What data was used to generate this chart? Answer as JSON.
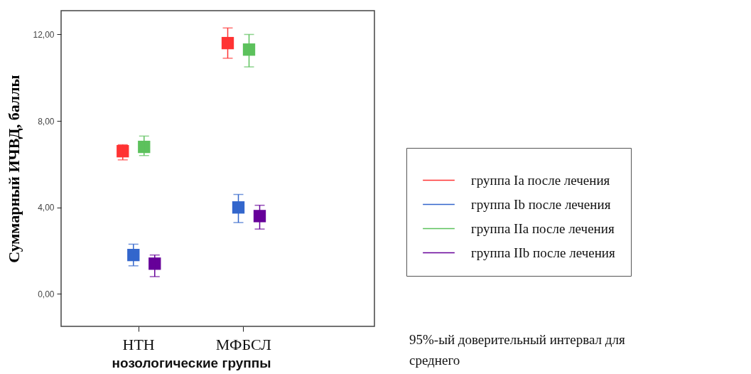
{
  "chart_data": {
    "type": "scatter",
    "xlabel": "нозологические группы",
    "ylabel": "Суммарный ИЧВД, баллы",
    "categories": [
      "НТН",
      "МФБСЛ"
    ],
    "series": [
      {
        "name": "группа Ia после лечения",
        "color": "#ff3333",
        "values": [
          6.6,
          11.6
        ],
        "errors": [
          [
            6.2,
            6.9
          ],
          [
            10.9,
            12.3
          ]
        ]
      },
      {
        "name": "группа Ib после лечения",
        "color": "#3366cc",
        "values": [
          1.8,
          4.0
        ],
        "errors": [
          [
            1.3,
            2.3
          ],
          [
            3.3,
            4.6
          ]
        ]
      },
      {
        "name": "группа IIa после лечения",
        "color": "#5cc15c",
        "values": [
          6.8,
          11.3
        ],
        "errors": [
          [
            6.4,
            7.3
          ],
          [
            10.5,
            12.0
          ]
        ]
      },
      {
        "name": "группа IIb после лечения",
        "color": "#660099",
        "values": [
          1.4,
          3.6
        ],
        "errors": [
          [
            0.8,
            1.8
          ],
          [
            3.0,
            4.1
          ]
        ]
      }
    ],
    "ylim": [
      -1.5,
      13.1
    ],
    "yticks": [
      {
        "value": 0,
        "label": "0,00"
      },
      {
        "value": 4,
        "label": "4,00"
      },
      {
        "value": 8,
        "label": "8,00"
      },
      {
        "value": 12,
        "label": "12,00"
      }
    ],
    "marker": "square",
    "legend": "right",
    "annotations": [
      "95%-ый доверительный интервал для среднего"
    ]
  }
}
